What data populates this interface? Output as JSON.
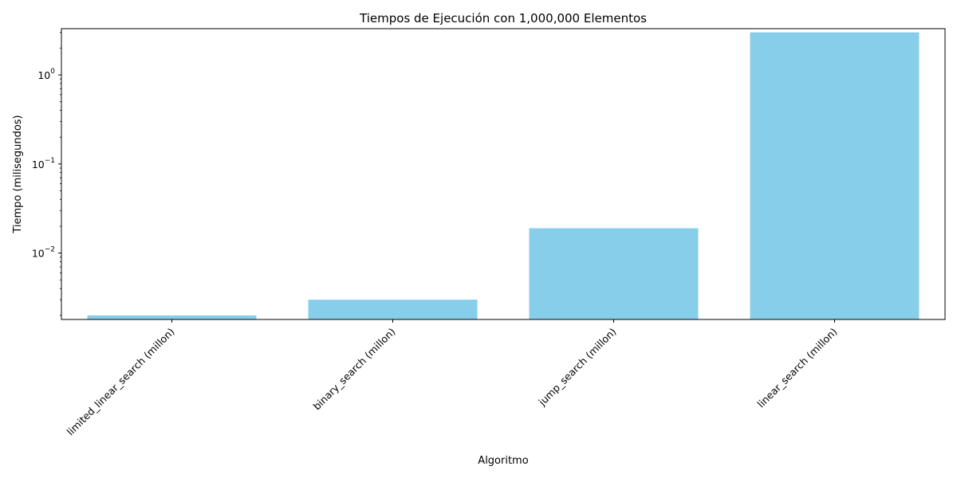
{
  "chart_data": {
    "type": "bar",
    "title": "Tiempos de Ejecución con 1,000,000 Elementos",
    "xlabel": "Algoritmo",
    "ylabel": "Tiempo (milisegundos)",
    "yscale": "log",
    "ylim": [
      0.0018,
      3.3
    ],
    "categories": [
      "limited_linear_search (millon)",
      "binary_search (millon)",
      "jump_search (millon)",
      "linear_search (millon)"
    ],
    "values": [
      0.002,
      0.003,
      0.019,
      3.0
    ],
    "bar_color": "#87ceeb",
    "yticks": [
      {
        "value": 0.01,
        "base": "10",
        "exp": "−2"
      },
      {
        "value": 0.1,
        "base": "10",
        "exp": "−1"
      },
      {
        "value": 1,
        "base": "10",
        "exp": "0"
      }
    ],
    "grid": false,
    "legend": "none"
  }
}
